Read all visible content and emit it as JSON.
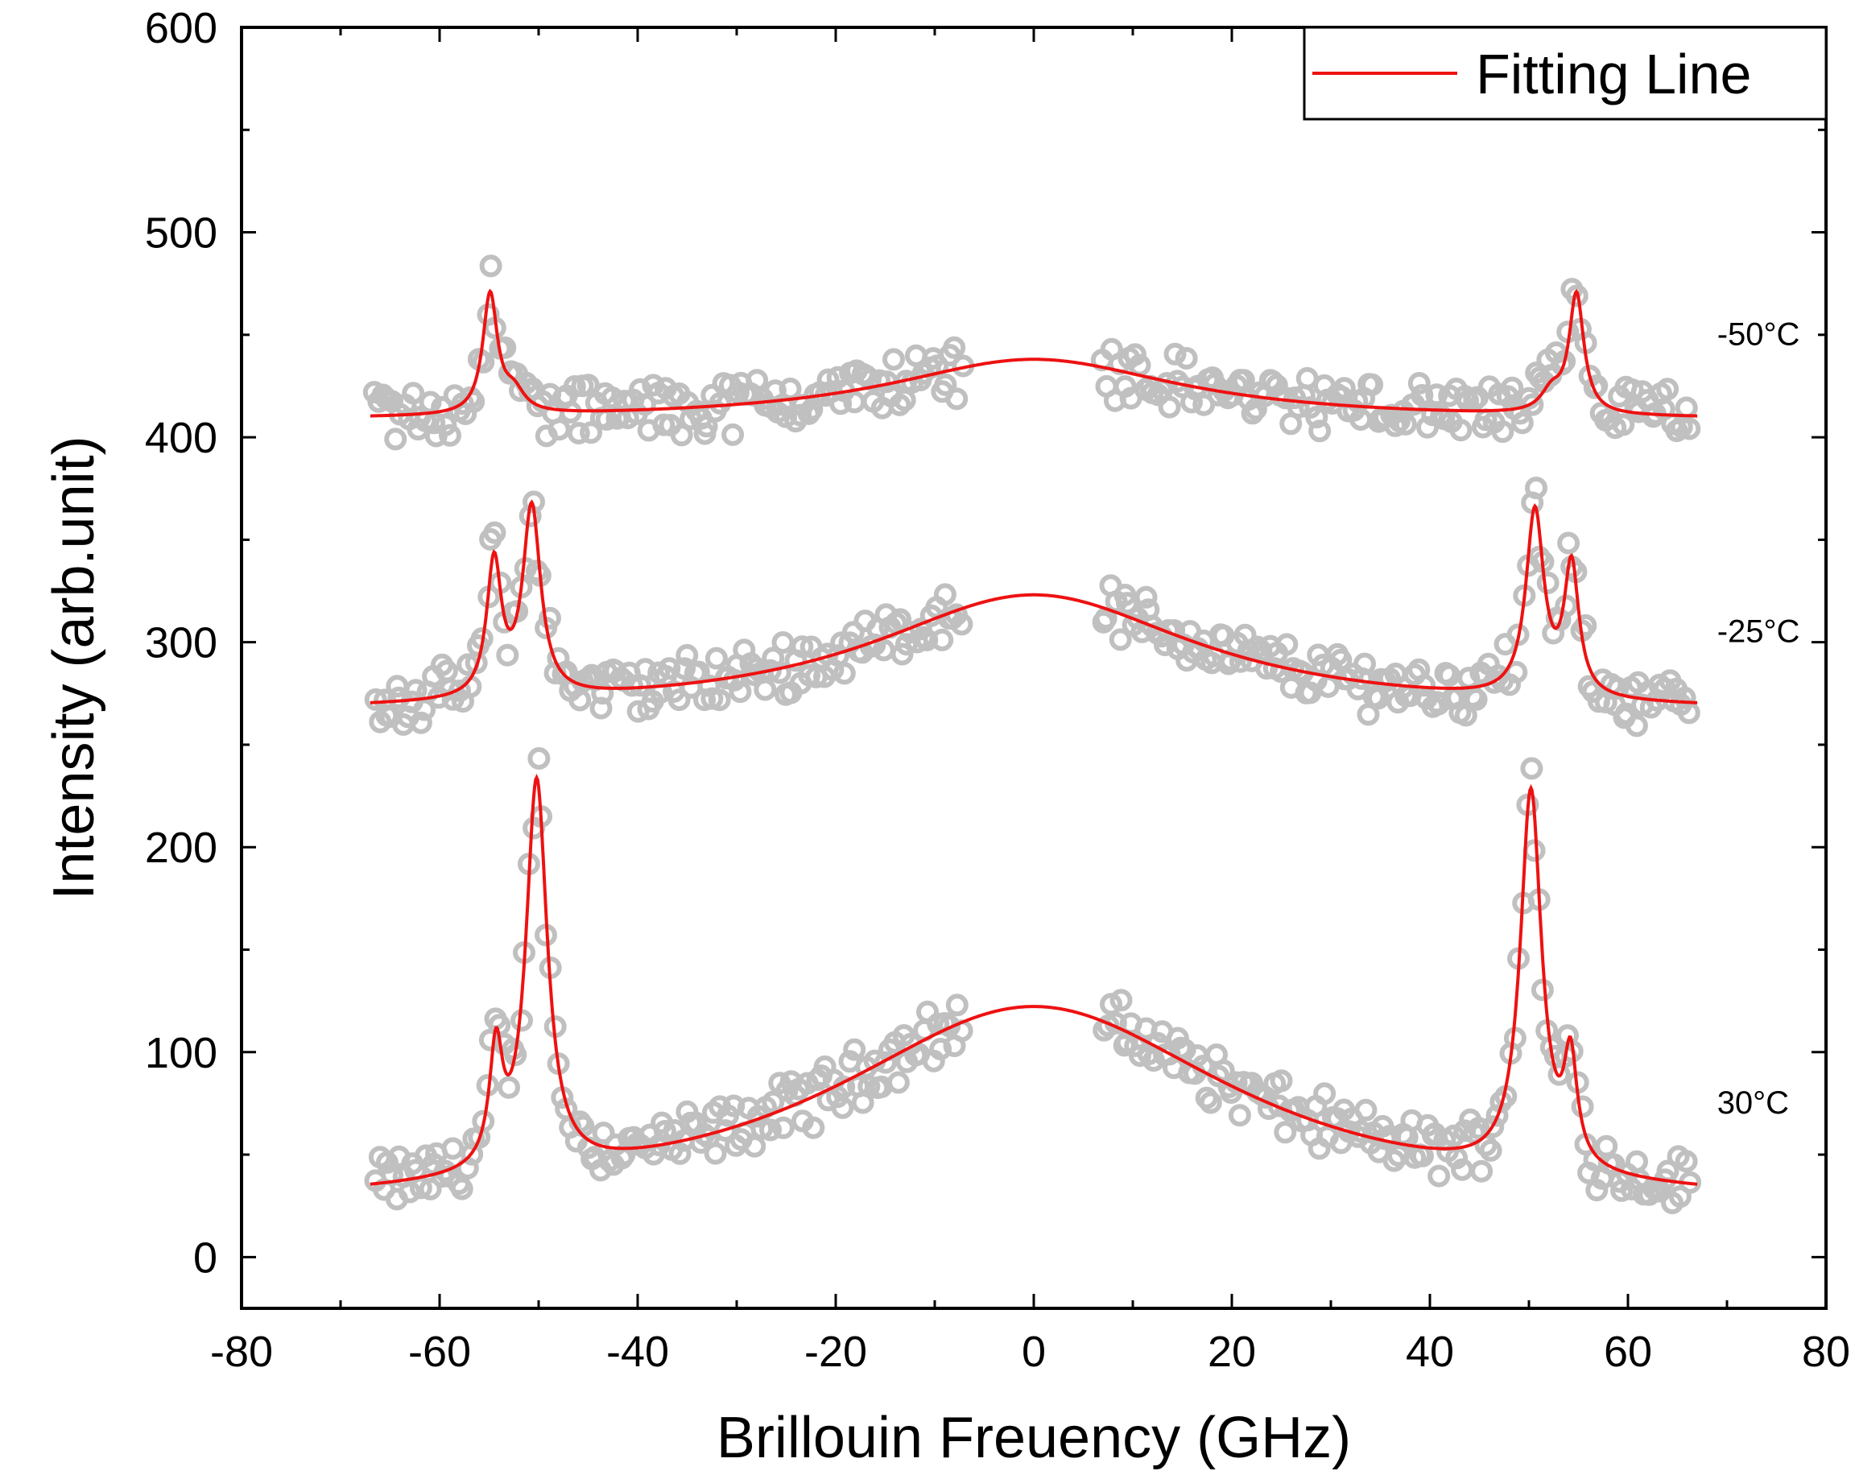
{
  "chart_data": {
    "type": "scatter",
    "title": "",
    "xlabel": "Brillouin Freuency (GHz)",
    "ylabel": "Intensity (arb.unit)",
    "xlim": [
      -80,
      80
    ],
    "ylim": [
      -25,
      600
    ],
    "xticks": [
      -80,
      -60,
      -40,
      -20,
      0,
      20,
      40,
      60,
      80
    ],
    "yticks": [
      0,
      100,
      200,
      300,
      400,
      500,
      600
    ],
    "legend": {
      "position": "top-right",
      "entries": [
        {
          "label": "Fitting Line",
          "color": "#ee1111"
        }
      ]
    },
    "colors": {
      "fit": "#ee1111",
      "data": "#c0c0c0",
      "axis": "#000000"
    },
    "series": [
      {
        "name": "30°C",
        "label": "30°C",
        "label_at": {
          "x": 69,
          "y": 70
        },
        "baseline": 22,
        "bg_amp": 100,
        "bg_width": 25,
        "gap": [
          -7,
          7
        ],
        "peaks": [
          {
            "center": -50.2,
            "height": 190,
            "width": 1.3
          },
          {
            "center": -54.3,
            "height": 55,
            "width": 0.8
          },
          {
            "center": 50.2,
            "height": 185,
            "width": 1.3
          },
          {
            "center": 54.2,
            "height": 50,
            "width": 0.8
          }
        ]
      },
      {
        "name": "-25°C",
        "label": "-25°C",
        "label_at": {
          "x": 69,
          "y": 300
        },
        "baseline": 265,
        "bg_amp": 58,
        "bg_width": 20,
        "gap": [
          -7,
          7
        ],
        "peaks": [
          {
            "center": -50.7,
            "height": 92,
            "width": 1.1
          },
          {
            "center": -54.5,
            "height": 65,
            "width": 0.9
          },
          {
            "center": 50.6,
            "height": 90,
            "width": 1.1
          },
          {
            "center": 54.3,
            "height": 63,
            "width": 0.9
          }
        ]
      },
      {
        "name": "-50°C",
        "label": "-50°C",
        "label_at": {
          "x": 69,
          "y": 445
        },
        "baseline": 408,
        "bg_amp": 30,
        "bg_width": 18,
        "gap": [
          -7,
          7
        ],
        "peaks": [
          {
            "center": -54.9,
            "height": 58,
            "width": 0.9
          },
          {
            "center": -52.5,
            "height": 10,
            "width": 1.3
          },
          {
            "center": 54.8,
            "height": 58,
            "width": 0.9
          },
          {
            "center": 52.3,
            "height": 10,
            "width": 1.3
          }
        ]
      }
    ]
  }
}
